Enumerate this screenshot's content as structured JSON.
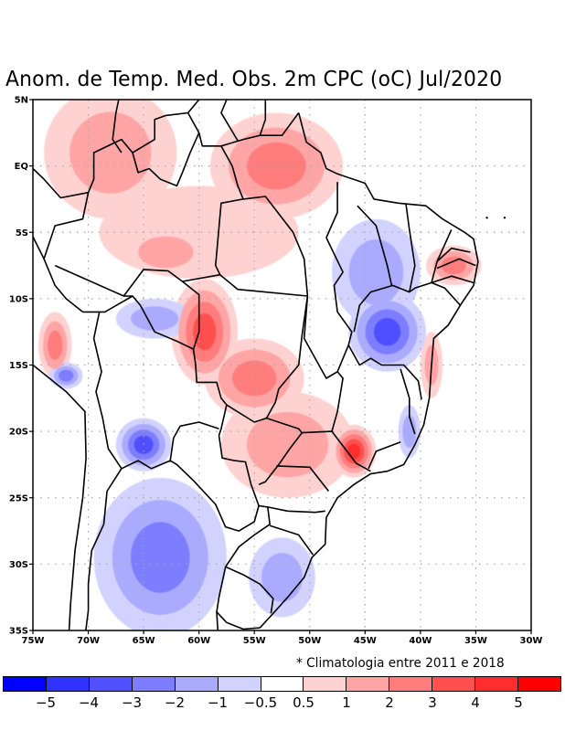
{
  "title": "Anom. de Temp. Med. Obs. 2m CPC (oC) Jul/2020",
  "footnote": "* Climatologia entre 2011 e 2018",
  "map": {
    "lon_range": [
      -75,
      -30
    ],
    "lat_range": [
      -35,
      5
    ],
    "lon_ticks": [
      {
        "value": -75,
        "label": "75W"
      },
      {
        "value": -70,
        "label": "70W"
      },
      {
        "value": -65,
        "label": "65W"
      },
      {
        "value": -60,
        "label": "60W"
      },
      {
        "value": -55,
        "label": "55W"
      },
      {
        "value": -50,
        "label": "50W"
      },
      {
        "value": -45,
        "label": "45W"
      },
      {
        "value": -40,
        "label": "40W"
      },
      {
        "value": -35,
        "label": "35W"
      },
      {
        "value": -30,
        "label": "30W"
      }
    ],
    "lat_ticks": [
      {
        "value": 5,
        "label": "5N"
      },
      {
        "value": 0,
        "label": "EQ"
      },
      {
        "value": -5,
        "label": "5S"
      },
      {
        "value": -10,
        "label": "10S"
      },
      {
        "value": -15,
        "label": "15S"
      },
      {
        "value": -20,
        "label": "20S"
      },
      {
        "value": -25,
        "label": "25S"
      },
      {
        "value": -30,
        "label": "30S"
      },
      {
        "value": -35,
        "label": "35S"
      }
    ],
    "gridlines": "dotted",
    "variable": "2m mean temperature anomaly",
    "units": "oC",
    "period": "Jul/2020",
    "source": "CPC"
  },
  "colorbar": {
    "bins": [
      {
        "color": "#0000ff"
      },
      {
        "color": "#3232ff"
      },
      {
        "color": "#5050ff"
      },
      {
        "color": "#7d7dff"
      },
      {
        "color": "#aaaaff"
      },
      {
        "color": "#d2d2ff"
      },
      {
        "color": "#ffffff"
      },
      {
        "color": "#ffd2d2"
      },
      {
        "color": "#ffa5a5"
      },
      {
        "color": "#ff7d7d"
      },
      {
        "color": "#ff5050"
      },
      {
        "color": "#ff2d2d"
      },
      {
        "color": "#ff0000"
      }
    ],
    "labels": [
      "-5",
      "-4",
      "-3",
      "-2",
      "-1",
      "-0.5",
      "0.5",
      "1",
      "2",
      "3",
      "4",
      "5"
    ]
  },
  "chart_data": {
    "type": "heatmap",
    "title": "Anom. de Temp. Med. Obs. 2m CPC (oC) Jul/2020",
    "xlabel": "",
    "ylabel": "",
    "x_range": [
      -75,
      -30
    ],
    "y_range": [
      -35,
      5
    ],
    "legend": "bottom",
    "levels": [
      -5,
      -4,
      -3,
      -2,
      -1,
      -0.5,
      0.5,
      1,
      2,
      3,
      4,
      5
    ],
    "annotation": "* Climatologia entre 2011 e 2018",
    "anomaly_features": [
      {
        "name": "NW Amazon / Colombia-Peru warm",
        "lon": -68,
        "lat": 1,
        "rx": 6,
        "ry": 5,
        "levels": [
          0.75,
          1.5
        ]
      },
      {
        "name": "Northern Amazon warm",
        "lon": -53,
        "lat": 0,
        "rx": 6,
        "ry": 4,
        "levels": [
          0.75,
          1.5,
          2.5
        ]
      },
      {
        "name": "Central Amazon warm",
        "lon": -60,
        "lat": -5,
        "rx": 9,
        "ry": 3.5,
        "levels": [
          0.75
        ]
      },
      {
        "name": "SW Amazon warm",
        "lon": -63,
        "lat": -6.5,
        "rx": 2.5,
        "ry": 1.2,
        "levels": [
          1.5
        ]
      },
      {
        "name": "Rondonia / Mato Grosso warm core",
        "lon": -59.5,
        "lat": -12.5,
        "rx": 3,
        "ry": 4,
        "levels": [
          0.75,
          1.5,
          2.5,
          3.5
        ]
      },
      {
        "name": "Mato Grosso south warm",
        "lon": -55,
        "lat": -16,
        "rx": 4.5,
        "ry": 3,
        "levels": [
          0.75,
          1.5,
          2.5
        ]
      },
      {
        "name": "Sao Paulo / Minas warm core",
        "lon": -46,
        "lat": -21.5,
        "rx": 2,
        "ry": 2,
        "levels": [
          0.75,
          1.5,
          2.5,
          3.5,
          4.5
        ]
      },
      {
        "name": "Mato Grosso do Sul / Parana warm",
        "lon": -52,
        "lat": -21,
        "rx": 6,
        "ry": 4,
        "levels": [
          0.75,
          1.5
        ]
      },
      {
        "name": "NE Brazil (Paraiba/Pernambuco) warm",
        "lon": -37,
        "lat": -7.5,
        "rx": 2.5,
        "ry": 1.5,
        "levels": [
          0.75,
          1.5,
          2.5
        ]
      },
      {
        "name": "Bahia coast warm",
        "lon": -39,
        "lat": -15,
        "rx": 1,
        "ry": 2.5,
        "levels": [
          0.75,
          1.5
        ]
      },
      {
        "name": "Peru Andes warm",
        "lon": -73,
        "lat": -13.5,
        "rx": 1.5,
        "ry": 2.5,
        "levels": [
          0.75,
          1.5,
          2.5
        ]
      },
      {
        "name": "Bahia / Tocantins cold core",
        "lon": -43,
        "lat": -12.5,
        "rx": 3.5,
        "ry": 3,
        "levels": [
          -0.75,
          -1.5,
          -2.5,
          -3.5
        ]
      },
      {
        "name": "Maranhao / Piaui cold",
        "lon": -44,
        "lat": -8,
        "rx": 4,
        "ry": 4,
        "levels": [
          -0.75,
          -1.5
        ]
      },
      {
        "name": "Bolivia / Paraguay cold core",
        "lon": -65,
        "lat": -21,
        "rx": 2.5,
        "ry": 2,
        "levels": [
          -0.75,
          -1.5,
          -2.5,
          -3.5
        ]
      },
      {
        "name": "Northern Argentina cold",
        "lon": -63.5,
        "lat": -29.5,
        "rx": 6,
        "ry": 6,
        "levels": [
          -0.75,
          -1.5,
          -2.5
        ]
      },
      {
        "name": "Bolivia north cold",
        "lon": -64,
        "lat": -11.5,
        "rx": 3.5,
        "ry": 1.5,
        "levels": [
          -0.75,
          -1.5
        ]
      },
      {
        "name": "Peru south cold",
        "lon": -72,
        "lat": -15.8,
        "rx": 1.5,
        "ry": 1,
        "levels": [
          -0.75,
          -1.5,
          -2.5
        ]
      },
      {
        "name": "Rio Grande do Sul / Uruguay cold",
        "lon": -52.5,
        "lat": -31,
        "rx": 3,
        "ry": 3,
        "levels": [
          -0.75,
          -1.5
        ]
      },
      {
        "name": "Espirito Santo coast cold",
        "lon": -41,
        "lat": -20,
        "rx": 1,
        "ry": 2,
        "levels": [
          -0.75,
          -1.5
        ]
      }
    ]
  }
}
